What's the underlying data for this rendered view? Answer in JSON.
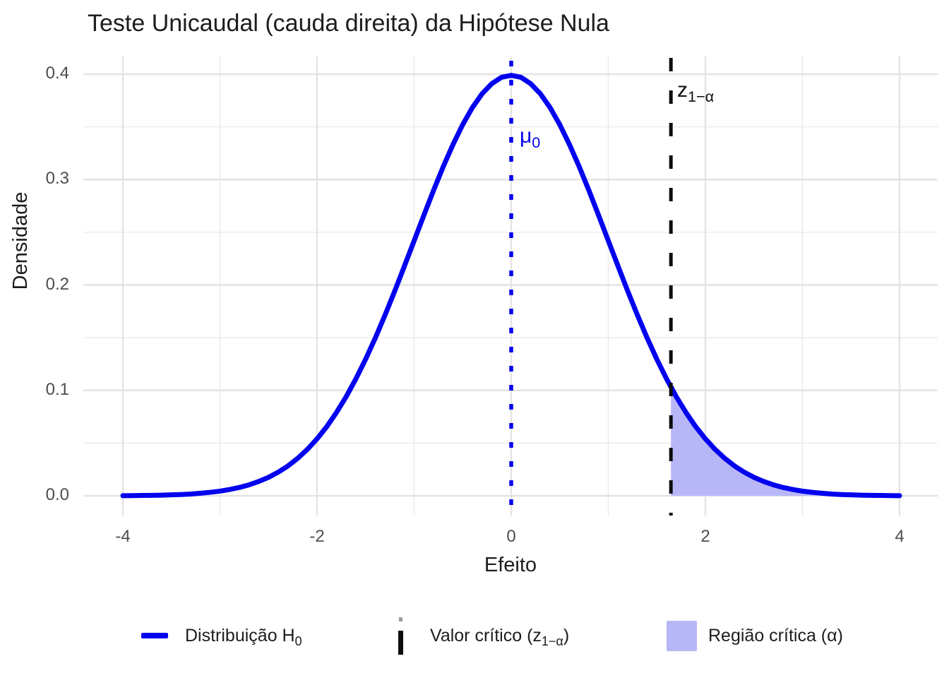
{
  "title": "Teste Unicaudal (cauda direita) da Hipótese Nula",
  "axes": {
    "x_title": "Efeito",
    "y_title": "Densidade",
    "x_tick_labels": [
      "-4",
      "-2",
      "0",
      "2",
      "4"
    ],
    "y_tick_labels": [
      "0.0",
      "0.1",
      "0.2",
      "0.3",
      "0.4"
    ]
  },
  "annotations": {
    "mu": {
      "base": "μ",
      "sub": "0"
    },
    "z": {
      "base": "z",
      "sub": "1−α"
    }
  },
  "legend": {
    "items": [
      {
        "key": "solid-line",
        "prefix": "Distribuição H",
        "sub": "0",
        "suffix": ""
      },
      {
        "key": "dashed-vline",
        "prefix": "Valor crítico (z",
        "sub": "1−α",
        "suffix": ")"
      },
      {
        "key": "fill-swatch",
        "prefix": "Região crítica (α)",
        "sub": "",
        "suffix": ""
      }
    ]
  },
  "colors": {
    "curve": "#0202ee",
    "fill": "#b7b7f8",
    "critical_line": "#0d0d0d",
    "grid_major": "#e3e3e3",
    "grid_minor": "#ececec",
    "axis_text": "#4d4d4d",
    "title_text": "#1d1d1d"
  },
  "chart_data": {
    "type": "area",
    "title": "Teste Unicaudal (cauda direita) da Hipótese Nula",
    "xlabel": "Efeito",
    "ylabel": "Densidade",
    "xlim": [
      -4.4,
      4.4
    ],
    "ylim": [
      -0.019,
      0.417
    ],
    "grid": true,
    "legend_position": "bottom",
    "x_major_ticks": [
      -4,
      -2,
      0,
      2,
      4
    ],
    "x_minor_ticks": [
      -3,
      -1,
      1,
      3
    ],
    "y_major_ticks": [
      0.0,
      0.1,
      0.2,
      0.3,
      0.4
    ],
    "y_minor_ticks": [
      0.05,
      0.15,
      0.25,
      0.35
    ],
    "mu0": 0,
    "critical_value": 1.645,
    "critical_region": [
      1.645,
      4
    ],
    "alpha": 0.05,
    "series": [
      {
        "name": "Distribuição H0",
        "type": "line",
        "description": "standard normal density N(0,1)",
        "x": [
          -4.0,
          -3.9,
          -3.8,
          -3.7,
          -3.6,
          -3.5,
          -3.4,
          -3.3,
          -3.2,
          -3.1,
          -3.0,
          -2.9,
          -2.8,
          -2.7,
          -2.6,
          -2.5,
          -2.4,
          -2.3,
          -2.2,
          -2.1,
          -2.0,
          -1.9,
          -1.8,
          -1.7,
          -1.6,
          -1.5,
          -1.4,
          -1.3,
          -1.2,
          -1.1,
          -1.0,
          -0.9,
          -0.8,
          -0.7,
          -0.6,
          -0.5,
          -0.4,
          -0.3,
          -0.2,
          -0.1,
          0.0,
          0.1,
          0.2,
          0.3,
          0.4,
          0.5,
          0.6,
          0.7,
          0.8,
          0.9,
          1.0,
          1.1,
          1.2,
          1.3,
          1.4,
          1.5,
          1.6,
          1.7,
          1.8,
          1.9,
          2.0,
          2.1,
          2.2,
          2.3,
          2.4,
          2.5,
          2.6,
          2.7,
          2.8,
          2.9,
          3.0,
          3.1,
          3.2,
          3.3,
          3.4,
          3.5,
          3.6,
          3.7,
          3.8,
          3.9,
          4.0
        ],
        "y": [
          0.0001,
          0.0002,
          0.0003,
          0.0004,
          0.0006,
          0.0009,
          0.0012,
          0.0017,
          0.0024,
          0.0033,
          0.0044,
          0.006,
          0.0079,
          0.0104,
          0.0136,
          0.0175,
          0.0224,
          0.0283,
          0.0355,
          0.044,
          0.054,
          0.0656,
          0.079,
          0.094,
          0.1109,
          0.1295,
          0.1497,
          0.1714,
          0.1942,
          0.2179,
          0.242,
          0.2661,
          0.2897,
          0.3123,
          0.3332,
          0.3521,
          0.3683,
          0.3814,
          0.391,
          0.397,
          0.3989,
          0.397,
          0.391,
          0.3814,
          0.3683,
          0.3521,
          0.3332,
          0.3123,
          0.2897,
          0.2661,
          0.242,
          0.2179,
          0.1942,
          0.1714,
          0.1497,
          0.1295,
          0.1109,
          0.094,
          0.079,
          0.0656,
          0.054,
          0.044,
          0.0355,
          0.0283,
          0.0224,
          0.0175,
          0.0136,
          0.0104,
          0.0079,
          0.006,
          0.0044,
          0.0033,
          0.0024,
          0.0017,
          0.0012,
          0.0009,
          0.0006,
          0.0004,
          0.0003,
          0.0002,
          0.0001
        ]
      }
    ]
  }
}
